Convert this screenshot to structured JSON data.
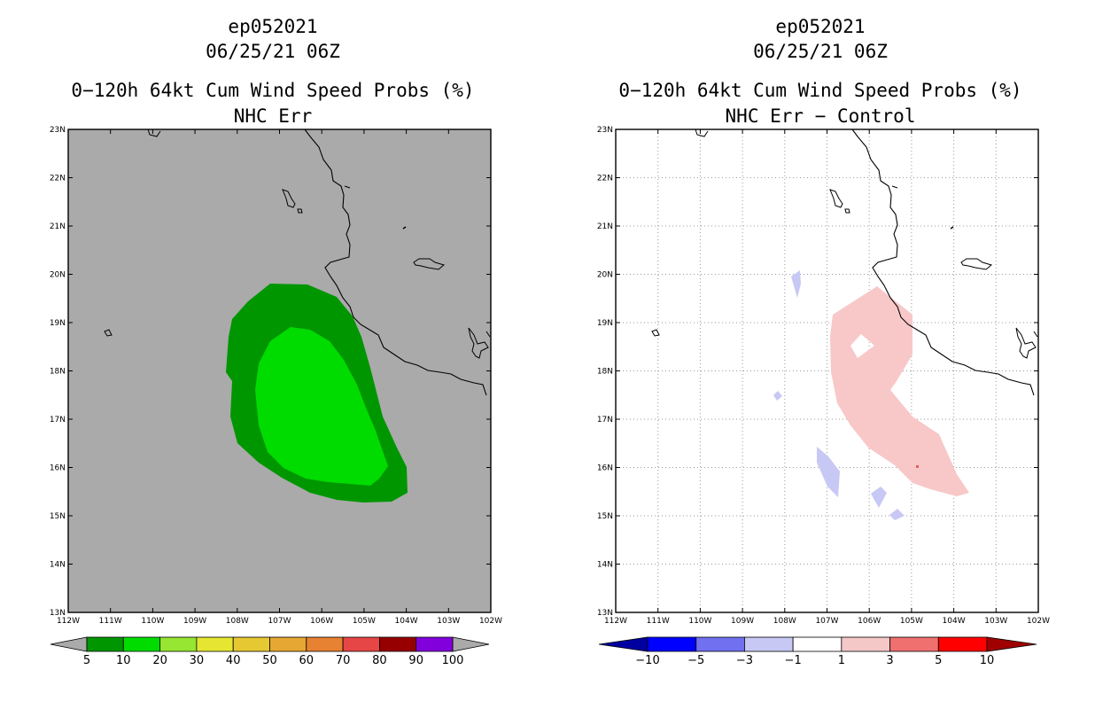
{
  "left_panel": {
    "storm_id": "ep052021",
    "datetime": "06/25/21 06Z",
    "title": "0−120h 64kt Cum Wind Speed Probs (%)",
    "subtitle": "NHC Err",
    "background_color": "#aaaaaa",
    "colorbar": {
      "labels": [
        "5",
        "10",
        "20",
        "30",
        "40",
        "50",
        "60",
        "70",
        "80",
        "90",
        "100"
      ],
      "colors": [
        "#009600",
        "#00dc00",
        "#96e632",
        "#e6e632",
        "#e6c832",
        "#e6a832",
        "#e68232",
        "#e64646",
        "#960000",
        "#8200dc"
      ]
    }
  },
  "right_panel": {
    "storm_id": "ep052021",
    "datetime": "06/25/21 06Z",
    "title": "0−120h 64kt Cum Wind Speed Probs (%)",
    "subtitle": "NHC Err − Control",
    "background_color": "#ffffff",
    "colorbar": {
      "labels": [
        "−10",
        "−5",
        "−3",
        "−1",
        "1",
        "3",
        "5",
        "10"
      ],
      "colors": [
        "#0000a0",
        "#0000ff",
        "#7070f0",
        "#c8c8f5",
        "#ffffff",
        "#f5c8c8",
        "#f07070",
        "#ff0000",
        "#a00000"
      ]
    }
  },
  "axes": {
    "lat_labels": [
      "23N",
      "22N",
      "21N",
      "20N",
      "19N",
      "18N",
      "17N",
      "16N",
      "15N",
      "14N",
      "13N"
    ],
    "lon_labels": [
      "112W",
      "111W",
      "110W",
      "109W",
      "108W",
      "107W",
      "106W",
      "105W",
      "104W",
      "103W",
      "102W"
    ]
  },
  "map": {
    "domain": {
      "lat_range": [
        13,
        23
      ],
      "lon_range": [
        -112,
        -102
      ]
    },
    "colors": {
      "prob_5_10": "#009600",
      "prob_10_20": "#00dc00",
      "diff_pos_1_3": "#f8c8c8",
      "diff_neg_1_3": "#c8c8f5"
    }
  }
}
